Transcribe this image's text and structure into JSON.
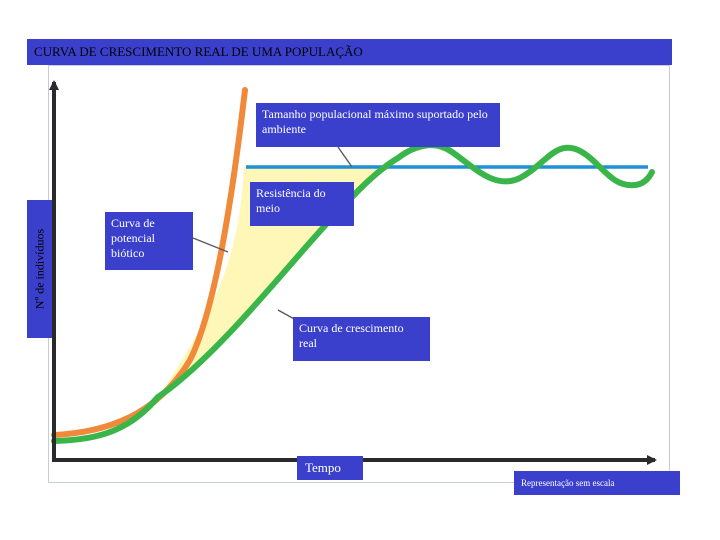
{
  "title": "CURVA DE CRESCIMENTO REAL DE UMA POPULAÇÃO",
  "axes": {
    "y_label": "Nº de indivíduos",
    "x_label": "Tempo"
  },
  "callouts": {
    "carrying_capacity": "Tamanho populacional máximo suportado pelo ambiente",
    "environmental_resistance": "Resistência do meio",
    "biotic_potential": "Curva de potencial biótico",
    "real_growth": "Curva de crescimento real"
  },
  "note": "Representação sem escala",
  "colors": {
    "box_fill": "#3a40cc",
    "biotic_curve": "#f08a3a",
    "real_curve": "#3ab54a",
    "carrying_line": "#1f8fd6",
    "resistance_area": "#fff7b8",
    "axis": "#2a2a2a"
  }
}
